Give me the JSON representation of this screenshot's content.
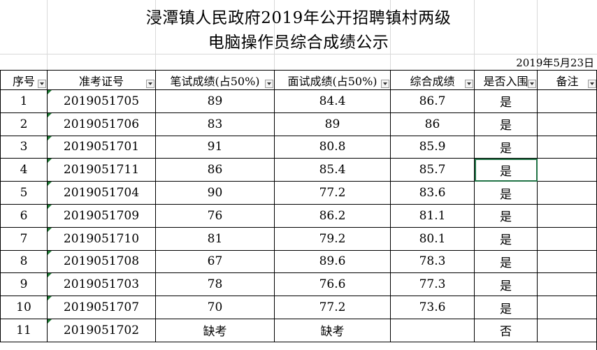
{
  "title_line1": "浸潭镇人民政府2019年公开招聘镇村两级",
  "title_line2": "电脑操作员综合成绩公示",
  "date": "2019年5月23日",
  "headers": [
    "序号",
    "准考证号",
    "笔试成绩(占50%)",
    "面试成绩(占50%)",
    "综合成绩",
    "是否入围",
    "备注"
  ],
  "rows": [
    {
      "no": "1",
      "id": "2019051705",
      "written": "89",
      "interview": "84.4",
      "total": "86.7",
      "shortlisted": "是",
      "note": ""
    },
    {
      "no": "2",
      "id": "2019051706",
      "written": "83",
      "interview": "89",
      "total": "86",
      "shortlisted": "是",
      "note": ""
    },
    {
      "no": "3",
      "id": "2019051701",
      "written": "91",
      "interview": "80.8",
      "total": "85.9",
      "shortlisted": "是",
      "note": ""
    },
    {
      "no": "4",
      "id": "2019051711",
      "written": "86",
      "interview": "85.4",
      "total": "85.7",
      "shortlisted": "是",
      "note": ""
    },
    {
      "no": "5",
      "id": "2019051704",
      "written": "90",
      "interview": "77.2",
      "total": "83.6",
      "shortlisted": "是",
      "note": ""
    },
    {
      "no": "6",
      "id": "2019051709",
      "written": "76",
      "interview": "86.2",
      "total": "81.1",
      "shortlisted": "是",
      "note": ""
    },
    {
      "no": "7",
      "id": "2019051710",
      "written": "81",
      "interview": "79.2",
      "total": "80.1",
      "shortlisted": "是",
      "note": ""
    },
    {
      "no": "8",
      "id": "2019051708",
      "written": "67",
      "interview": "89.6",
      "total": "78.3",
      "shortlisted": "是",
      "note": ""
    },
    {
      "no": "9",
      "id": "2019051703",
      "written": "78",
      "interview": "76.6",
      "total": "77.3",
      "shortlisted": "是",
      "note": ""
    },
    {
      "no": "10",
      "id": "2019051707",
      "written": "70",
      "interview": "77.2",
      "total": "73.6",
      "shortlisted": "是",
      "note": ""
    },
    {
      "no": "11",
      "id": "2019051702",
      "written": "缺考",
      "interview": "缺考",
      "total": "",
      "shortlisted": "否",
      "note": ""
    }
  ],
  "colors": {
    "selection": "#217346",
    "error_triangle": "#1e7b34",
    "gridline": "#d9d9d9"
  }
}
